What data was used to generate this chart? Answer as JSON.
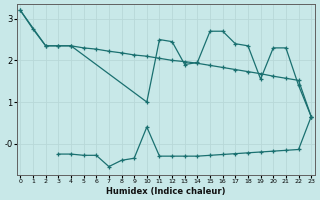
{
  "xlabel": "Humidex (Indice chaleur)",
  "background_color": "#c8e8e8",
  "grid_color": "#b8d8d8",
  "line_color": "#1a7070",
  "x_min": 0,
  "x_max": 23,
  "y_min": -0.75,
  "y_max": 3.35,
  "ytick_vals": [
    3,
    2,
    1,
    0
  ],
  "ytick_labels": [
    "3",
    "2",
    "1",
    "-0"
  ],
  "series1_x": [
    0,
    1,
    2,
    3,
    4,
    10,
    11,
    12,
    13,
    14,
    15,
    16,
    17,
    18,
    19,
    20,
    21,
    22,
    23
  ],
  "series1_y": [
    3.2,
    2.75,
    2.35,
    2.35,
    2.35,
    1.0,
    2.5,
    2.45,
    1.9,
    1.95,
    2.7,
    2.7,
    2.4,
    2.35,
    1.55,
    2.3,
    2.3,
    1.4,
    0.65
  ],
  "series2_x": [
    0,
    2,
    3,
    4,
    5,
    6,
    7,
    8,
    9,
    10,
    11,
    12,
    13,
    14,
    15,
    16,
    17,
    18,
    19,
    20,
    21,
    22,
    23
  ],
  "series2_y": [
    3.2,
    2.35,
    2.35,
    2.35,
    2.3,
    2.27,
    2.22,
    2.18,
    2.13,
    2.1,
    2.05,
    2.0,
    1.97,
    1.93,
    1.88,
    1.83,
    1.78,
    1.73,
    1.68,
    1.62,
    1.57,
    1.52,
    0.65
  ],
  "series3_x": [
    3,
    4,
    5,
    6,
    7,
    8,
    9,
    10,
    11,
    12,
    13,
    14,
    15,
    16,
    17,
    18,
    19,
    20,
    21,
    22,
    23
  ],
  "series3_y": [
    -0.25,
    -0.25,
    -0.28,
    -0.28,
    -0.55,
    -0.4,
    -0.35,
    0.4,
    -0.3,
    -0.3,
    -0.3,
    -0.3,
    -0.28,
    -0.26,
    -0.24,
    -0.22,
    -0.2,
    -0.18,
    -0.16,
    -0.14,
    0.65
  ]
}
